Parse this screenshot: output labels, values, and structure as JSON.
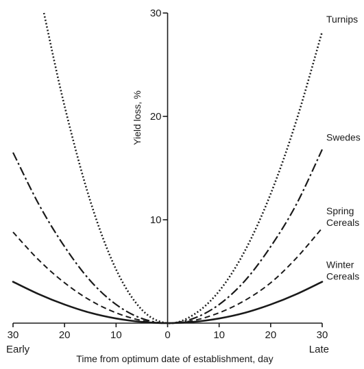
{
  "chart_data": {
    "type": "line",
    "title": "",
    "xlabel": "Time from optimum date of establishment, day",
    "ylabel": "Yield loss, %",
    "x_side_labels": {
      "left": "Early",
      "right": "Late"
    },
    "xlim": [
      -30,
      30
    ],
    "ylim": [
      0,
      30
    ],
    "x_ticks": [
      -30,
      -20,
      -10,
      0,
      10,
      20,
      30
    ],
    "x_tick_labels": [
      "30",
      "20",
      "10",
      "0",
      "10",
      "20",
      "30"
    ],
    "y_ticks": [
      10,
      20,
      30
    ],
    "y_tick_labels": [
      "10",
      "20",
      "30"
    ],
    "grid": false,
    "legend": "none",
    "series": [
      {
        "name": "Turnips",
        "label_lines": [
          "Turnips"
        ],
        "style": "dotted",
        "x": [
          -24,
          -20,
          -15,
          -10,
          -5,
          0,
          5,
          10,
          15,
          20,
          25,
          30
        ],
        "y": [
          30,
          21,
          11.8,
          5.2,
          1.3,
          0,
          0.8,
          3.1,
          7.0,
          12.5,
          19.6,
          28.2
        ]
      },
      {
        "name": "Swedes",
        "label_lines": [
          "Swedes"
        ],
        "style": "long-dash-dot",
        "x": [
          -30,
          -25,
          -20,
          -15,
          -10,
          -5,
          0,
          5,
          10,
          15,
          20,
          25,
          30
        ],
        "y": [
          16.5,
          11.5,
          7.4,
          4.1,
          1.8,
          0.45,
          0,
          0.45,
          1.8,
          4.1,
          7.4,
          11.5,
          16.8
        ]
      },
      {
        "name": "Spring Cereals",
        "label_lines": [
          "Spring",
          "Cereals"
        ],
        "style": "dash",
        "x": [
          -30,
          -25,
          -20,
          -15,
          -10,
          -5,
          0,
          5,
          10,
          15,
          20,
          25,
          30
        ],
        "y": [
          8.8,
          6.1,
          3.9,
          2.2,
          1.0,
          0.25,
          0,
          0.25,
          1.0,
          2.2,
          3.9,
          6.3,
          9.2
        ]
      },
      {
        "name": "Winter Cereals",
        "label_lines": [
          "Winter",
          "Cereals"
        ],
        "style": "solid",
        "x": [
          -30,
          -25,
          -20,
          -15,
          -10,
          -5,
          0,
          5,
          10,
          15,
          20,
          25,
          30
        ],
        "y": [
          4.0,
          2.8,
          1.8,
          1.0,
          0.45,
          0.12,
          0,
          0.12,
          0.45,
          1.0,
          1.8,
          2.8,
          4.0
        ]
      }
    ]
  }
}
